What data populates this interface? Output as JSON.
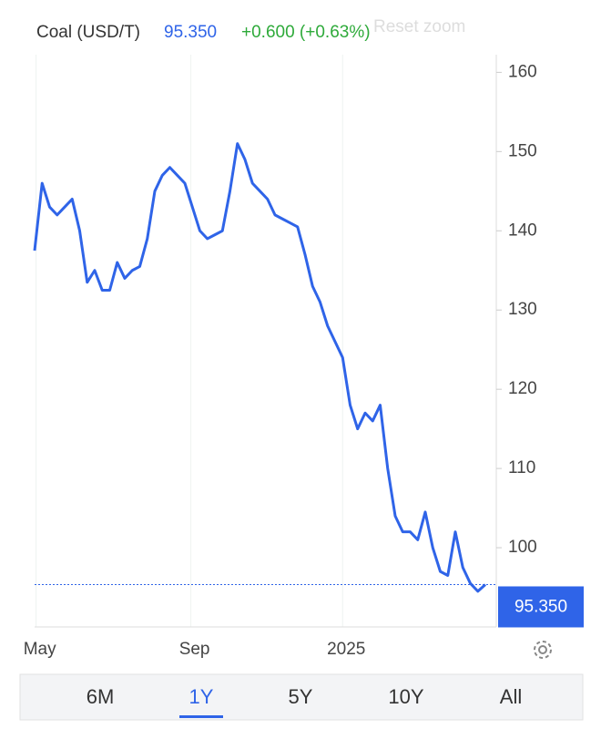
{
  "header": {
    "name": "Coal (USD/T)",
    "price": "95.350",
    "change": "+0.600 (+0.63%)",
    "reset": "Reset zoom"
  },
  "chart_data": {
    "type": "line",
    "color": "#2f64e8",
    "values": [
      137.5,
      146,
      143,
      142,
      143,
      144,
      140,
      133.5,
      135,
      132.5,
      132.5,
      136,
      134,
      135,
      135.5,
      139,
      145,
      147,
      148,
      147,
      146,
      143,
      140,
      139,
      139.5,
      140,
      145,
      151,
      149,
      146,
      145,
      144,
      142,
      141.5,
      141,
      140.5,
      137,
      133,
      131,
      128,
      126,
      124,
      118,
      115,
      117,
      116,
      118,
      110,
      104,
      102,
      102,
      101,
      104.5,
      100,
      97,
      96.5,
      102,
      97.5,
      95.5,
      94.5,
      95.35
    ],
    "xlim": [
      0,
      60
    ],
    "xticks": [
      {
        "value": 0.2,
        "label": "May"
      },
      {
        "value": 20.8,
        "label": "Sep"
      },
      {
        "value": 41,
        "label": "2025"
      }
    ],
    "ylim": [
      90,
      162
    ],
    "yticks": [
      100,
      110,
      120,
      130,
      140,
      150,
      160
    ],
    "last_label": "95.350"
  },
  "ranges": {
    "options": [
      "6M",
      "1Y",
      "5Y",
      "10Y",
      "All"
    ],
    "selected": 1
  }
}
